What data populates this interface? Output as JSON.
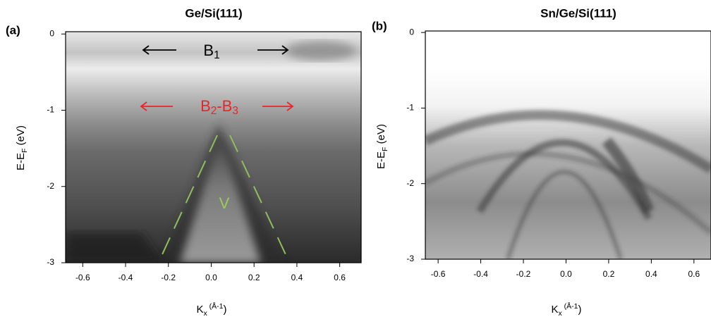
{
  "chart_data": [
    {
      "type": "heatmap",
      "panel_label": "(a)",
      "title": "Ge/Si(111)",
      "xlabel": [
        "K",
        "x",
        " (Å",
        "-1",
        ")"
      ],
      "ylabel": [
        "E-E",
        "F",
        " (eV)"
      ],
      "xlim": [
        -0.68,
        0.7
      ],
      "ylim": [
        -3,
        0.03
      ],
      "xticks": [
        -0.6,
        -0.4,
        -0.2,
        {
          "value": 0,
          "label": "0.0"
        },
        0.2,
        0.4,
        0.6
      ],
      "yticks": [
        0,
        -1,
        -2,
        -3
      ],
      "annotations": [
        {
          "text": [
            "B",
            "1"
          ],
          "color": "#000000"
        },
        {
          "text": [
            "B",
            "2",
            "-B",
            "3"
          ],
          "color": "#e8262a"
        },
        {
          "text": [
            "V"
          ],
          "color": "#9acd5a"
        }
      ]
    },
    {
      "type": "heatmap",
      "panel_label": "(b)",
      "title": "Sn/Ge/Si(111)",
      "xlabel": [
        "K",
        "x",
        " (Å",
        "-1",
        ")"
      ],
      "ylabel": [
        "E-E",
        "F",
        " (eV)"
      ],
      "xlim": [
        -0.66,
        0.68
      ],
      "ylim": [
        -3,
        0.02
      ],
      "xticks": [
        -0.6,
        -0.4,
        -0.2,
        {
          "value": 0,
          "label": "0.0"
        },
        0.2,
        0.4,
        0.6
      ],
      "yticks": [
        0,
        -1,
        -2,
        -3
      ],
      "annotations": []
    }
  ]
}
